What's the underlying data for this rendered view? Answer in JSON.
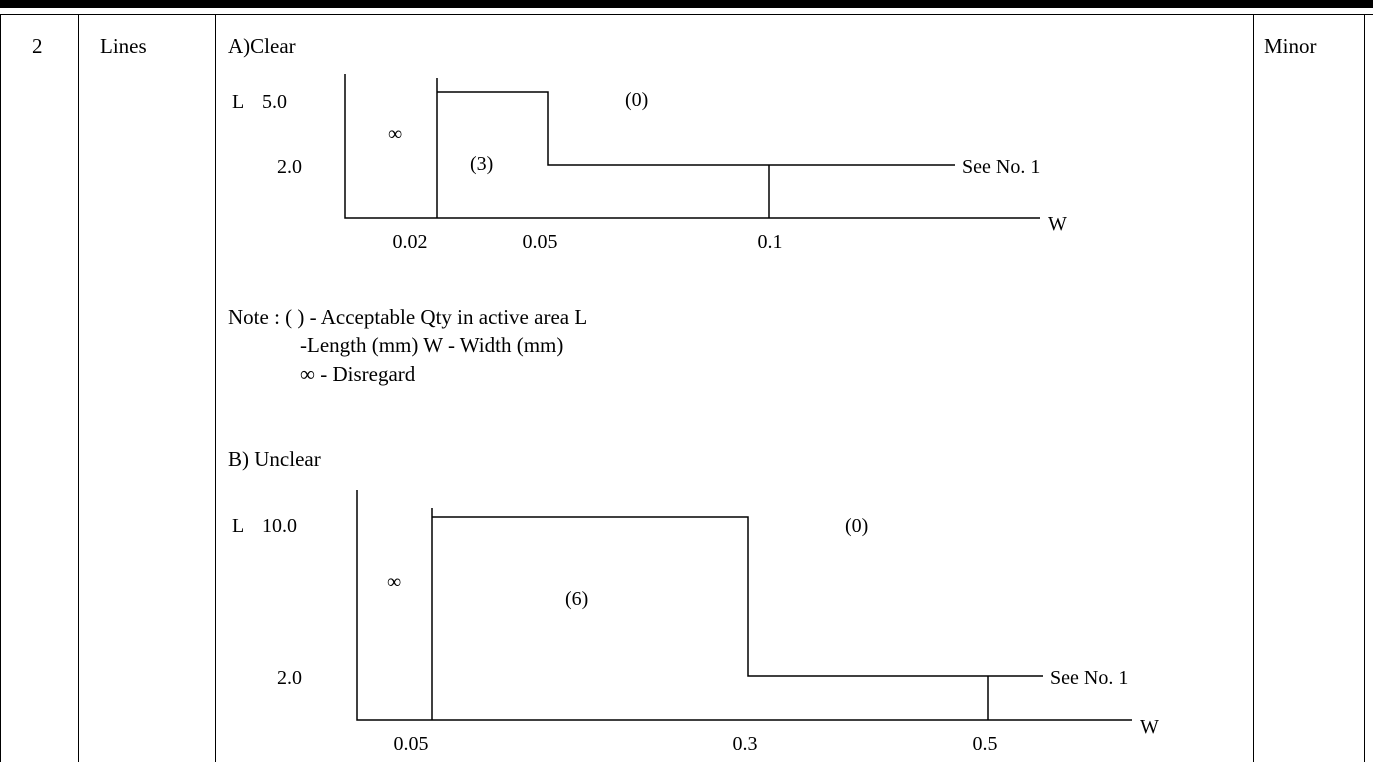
{
  "row": {
    "number": "2",
    "item": "Lines",
    "level": "Minor"
  },
  "section_a": {
    "title": "A)Clear",
    "y_label": "L",
    "x_label": "W",
    "y_ticks": [
      "5.0",
      "2.0"
    ],
    "x_ticks": [
      "0.02",
      "0.05",
      "0.1"
    ],
    "region_labels": [
      "∞",
      "(3)",
      "(0)"
    ],
    "reference": "See No. 1"
  },
  "note": {
    "line1": "Note : ( ) - Acceptable Qty in active area L",
    "line2": "-Length (mm) W - Width (mm)",
    "line3": "∞ - Disregard"
  },
  "section_b": {
    "title": "B) Unclear",
    "y_label": "L",
    "x_label": "W",
    "y_ticks": [
      "10.0",
      "2.0"
    ],
    "x_ticks": [
      "0.05",
      "0.3",
      "0.5"
    ],
    "region_labels": [
      "∞",
      "(6)",
      "(0)"
    ],
    "reference": "See No. 1"
  }
}
